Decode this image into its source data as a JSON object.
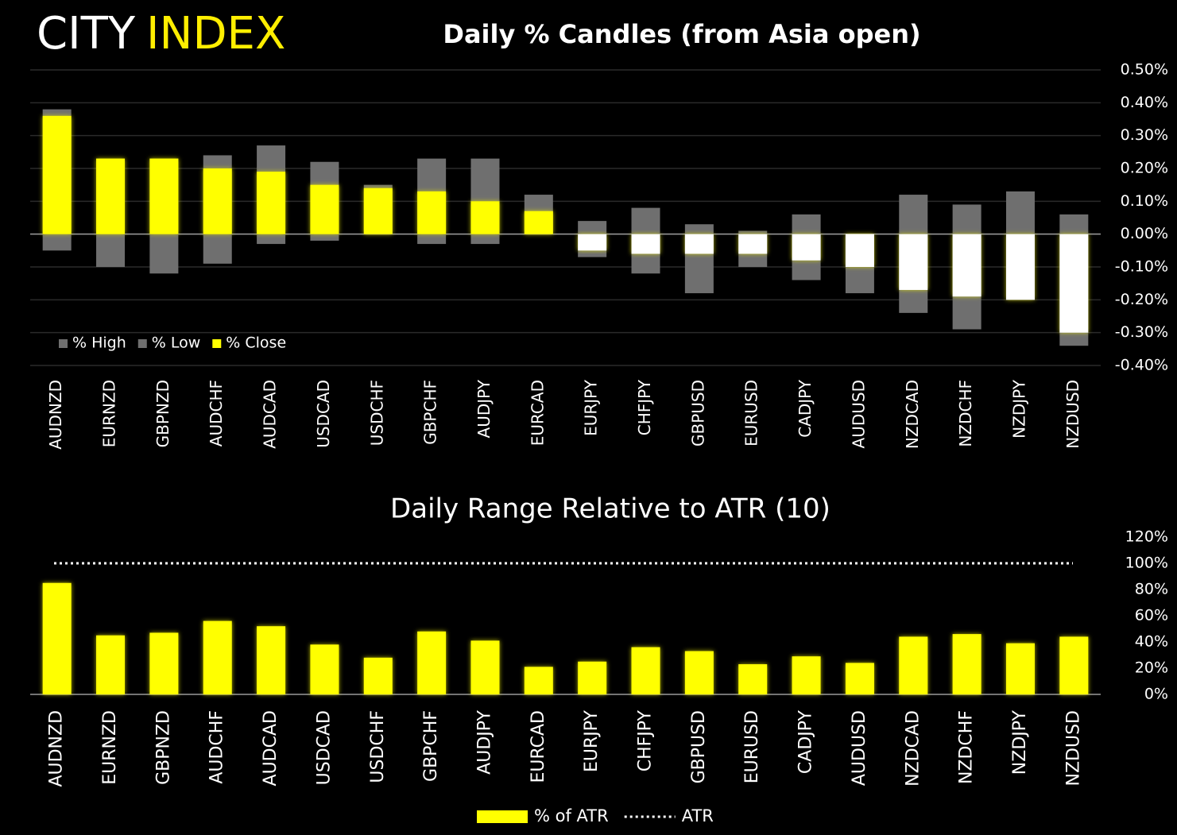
{
  "brand": [
    "CITY",
    "INDEX"
  ],
  "chart_data": [
    {
      "type": "candle",
      "title": "Daily % Candles (from Asia open)",
      "categories": [
        "AUDNZD",
        "EURNZD",
        "GBPNZD",
        "AUDCHF",
        "AUDCAD",
        "USDCAD",
        "USDCHF",
        "GBPCHF",
        "AUDJPY",
        "EURCAD",
        "EURJPY",
        "CHFJPY",
        "GBPUSD",
        "EURUSD",
        "CADJPY",
        "AUDUSD",
        "NZDCAD",
        "NZDCHF",
        "NZDJPY",
        "NZDUSD"
      ],
      "series": [
        {
          "name": "% High",
          "color": "#6f6f6f",
          "values": [
            0.38,
            0.23,
            0.23,
            0.24,
            0.27,
            0.22,
            0.15,
            0.23,
            0.23,
            0.12,
            0.04,
            0.08,
            0.03,
            0.01,
            0.06,
            0.0,
            0.12,
            0.09,
            0.13,
            0.06
          ]
        },
        {
          "name": "% Low",
          "color": "#6f6f6f",
          "values": [
            -0.05,
            -0.1,
            -0.12,
            -0.09,
            -0.03,
            -0.02,
            0.0,
            -0.03,
            -0.03,
            0.0,
            -0.07,
            -0.12,
            -0.18,
            -0.1,
            -0.14,
            -0.18,
            -0.24,
            -0.29,
            -0.2,
            -0.34
          ]
        },
        {
          "name": "% Close",
          "color": "#ffff00",
          "negative_color": "#ffffff",
          "values": [
            0.36,
            0.23,
            0.23,
            0.2,
            0.19,
            0.15,
            0.14,
            0.13,
            0.1,
            0.07,
            -0.05,
            -0.06,
            -0.06,
            -0.06,
            -0.08,
            -0.1,
            -0.17,
            -0.19,
            -0.2,
            -0.3
          ]
        }
      ],
      "ylim": [
        -0.4,
        0.5
      ],
      "yticks": [
        {
          "value": -0.4,
          "label": "-0.40%"
        },
        {
          "value": -0.3,
          "label": "-0.30%"
        },
        {
          "value": -0.2,
          "label": "-0.20%"
        },
        {
          "value": -0.1,
          "label": "-0.10%"
        },
        {
          "value": 0,
          "label": "0.00%"
        },
        {
          "value": 0.1,
          "label": "0.10%"
        },
        {
          "value": 0.2,
          "label": "0.20%"
        },
        {
          "value": 0.3,
          "label": "0.30%"
        },
        {
          "value": 0.4,
          "label": "0.40%"
        },
        {
          "value": 0.5,
          "label": "0.50%"
        }
      ],
      "grid": true,
      "legend": "bottom-left"
    },
    {
      "type": "bar",
      "title": "Daily Range Relative to ATR (10)",
      "categories": [
        "AUDNZD",
        "EURNZD",
        "GBPNZD",
        "AUDCHF",
        "AUDCAD",
        "USDCAD",
        "USDCHF",
        "GBPCHF",
        "AUDJPY",
        "EURCAD",
        "EURJPY",
        "CHFJPY",
        "GBPUSD",
        "EURUSD",
        "CADJPY",
        "AUDUSD",
        "NZDCAD",
        "NZDCHF",
        "NZDJPY",
        "NZDUSD"
      ],
      "series": [
        {
          "name": "% of ATR",
          "color": "#ffff00",
          "values": [
            85,
            45,
            47,
            56,
            52,
            38,
            28,
            48,
            41,
            21,
            25,
            36,
            33,
            23,
            29,
            24,
            44,
            46,
            39,
            44
          ]
        }
      ],
      "reference_line": {
        "name": "ATR",
        "value": 100,
        "color": "#ffffff"
      },
      "ylim": [
        0,
        120
      ],
      "yticks": [
        {
          "value": 0,
          "label": "0%"
        },
        {
          "value": 20,
          "label": "20%"
        },
        {
          "value": 40,
          "label": "40%"
        },
        {
          "value": 60,
          "label": "60%"
        },
        {
          "value": 80,
          "label": "80%"
        },
        {
          "value": 100,
          "label": "100%"
        },
        {
          "value": 120,
          "label": "120%"
        }
      ],
      "grid": false,
      "legend": "bottom"
    }
  ]
}
